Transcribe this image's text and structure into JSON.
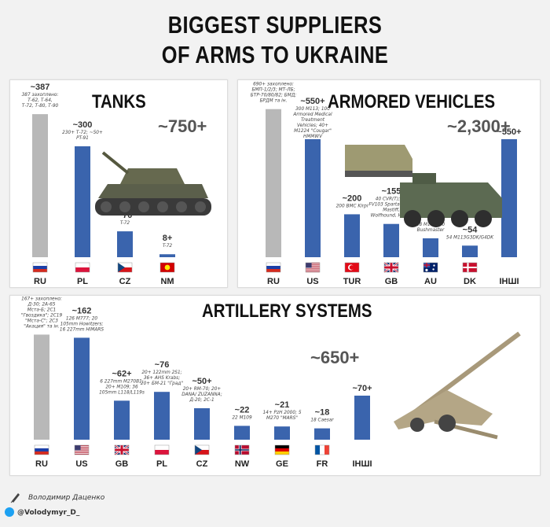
{
  "title_line1": "BIGGEST SUPPLIERS",
  "title_line2": "OF ARMS TO UKRAINE",
  "footer": {
    "author": "Володимир Даценко",
    "handle": "@Volodymyr_D_"
  },
  "colors": {
    "bar": "#3a64ad",
    "bar_gray": "#b8b8b8",
    "accent_text": "#555555"
  },
  "chart_data": [
    {
      "type": "bar",
      "title": "TANKS",
      "total": "~750+",
      "categories": [
        "RU",
        "PL",
        "CZ",
        "NM"
      ],
      "values": [
        387,
        300,
        70,
        8
      ],
      "value_labels": [
        "~387",
        "~300",
        "~70",
        "8+"
      ],
      "notes": [
        "387 захоплено: Т-62, Т-64, Т-72, Т-80, Т-90",
        "230+ Т-72; ~50+ PT-91",
        "T-72",
        "T-72"
      ],
      "bar_colors": [
        "gray",
        "blue",
        "blue",
        "blue"
      ],
      "flags": [
        "ru",
        "pl",
        "cz",
        "mk"
      ],
      "ylim": [
        0,
        400
      ]
    },
    {
      "type": "bar",
      "title": "ARMORED VEHICLES",
      "total": "~2,300+",
      "categories": [
        "RU",
        "US",
        "TUR",
        "GB",
        "AU",
        "DK",
        "ІНШІ"
      ],
      "values": [
        690,
        550,
        200,
        155,
        88,
        54,
        550
      ],
      "value_labels": [
        "~690+",
        "~550+",
        "~200",
        "~155",
        "~88",
        "~54",
        "~550+"
      ],
      "notes": [
        "690+ захоплено: БМП-1/2/3; МТ-ЛБ; БТР-70/80/82; БМД; БРДМ та ін.",
        "300 M113; 100 Armored Medical Treatment Vehicles; 40+ M1224 \"Cougar\" HMMWV",
        "200 BMC Kirpi",
        "40 CVR(T); 35 FV103 Spartans; 80 Mastiff, Wolfhound, Husky",
        "28 M113; 40 Bushmaster",
        "54 M113G3DK/G4DK",
        ""
      ],
      "bar_colors": [
        "gray",
        "blue",
        "blue",
        "blue",
        "blue",
        "blue",
        "blue"
      ],
      "flags": [
        "ru",
        "us",
        "tr",
        "gb",
        "au",
        "dk",
        "none"
      ],
      "ylim": [
        0,
        700
      ]
    },
    {
      "type": "bar",
      "title": "ARTILLERY SYSTEMS",
      "total": "~650+",
      "categories": [
        "RU",
        "US",
        "GB",
        "PL",
        "CZ",
        "NW",
        "GE",
        "FR",
        "ІНШІ"
      ],
      "values": [
        167,
        162,
        62,
        76,
        50,
        22,
        21,
        18,
        70
      ],
      "value_labels": [
        "~167+",
        "~162",
        "~62+",
        "~76",
        "~50+",
        "~22",
        "~21",
        "~18",
        "~70+"
      ],
      "notes": [
        "167+ захоплено: Д-30; 2А-65 Мста-Б; 2С1 \"Гвоздика\"; 2С19 \"Мста-С\"; 2С3 \"Акация\" та ін.",
        "126 M777; 20 105mm Howitzers; 16 227mm HIMARS",
        "6 227mm M270B1; 20+ M109; 36 105mm L118/L119s",
        "20+ 122mm 2S1; 36+ AHS Krabs; 20+ БМ-21 \"Град\"",
        "20+ RM-70; 20+ DANA/ ZUZANNA; Д-20; 2С-1",
        "22 M109",
        "14+ PzH 2000; 5 M270 \"MARS\"",
        "18 Caesar",
        ""
      ],
      "bar_colors": [
        "gray",
        "blue",
        "blue",
        "blue",
        "blue",
        "blue",
        "blue",
        "blue",
        "blue"
      ],
      "flags": [
        "ru",
        "us",
        "gb",
        "pl",
        "cz",
        "no",
        "de",
        "fr",
        "none"
      ],
      "ylim": [
        0,
        175
      ]
    }
  ]
}
